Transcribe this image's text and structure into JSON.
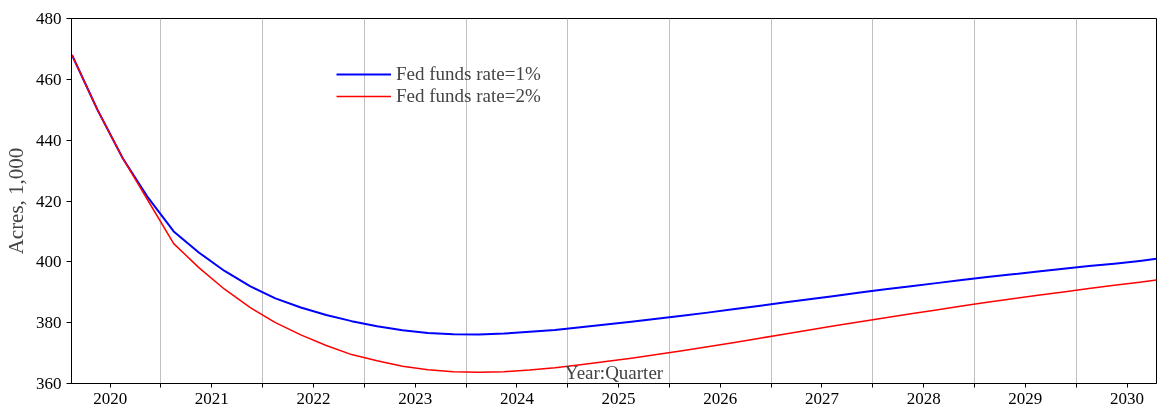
{
  "chart_data": {
    "type": "line",
    "xlabel": "Year:Quarter",
    "ylabel": "Acres, 1,000",
    "x": [
      2019.625,
      2019.875,
      2020.125,
      2020.375,
      2020.625,
      2020.875,
      2021.125,
      2021.375,
      2021.625,
      2021.875,
      2022.125,
      2022.375,
      2022.625,
      2022.875,
      2023.125,
      2023.375,
      2023.625,
      2023.875,
      2024.125,
      2024.375,
      2024.625,
      2024.875,
      2025.125,
      2025.375,
      2025.625,
      2025.875,
      2026.125,
      2026.375,
      2026.625,
      2026.875,
      2027.125,
      2027.375,
      2027.625,
      2027.875,
      2028.125,
      2028.375,
      2028.625,
      2028.875,
      2029.125,
      2029.375,
      2029.625,
      2029.875,
      2030.125,
      2030.29
    ],
    "series": [
      {
        "name": "Fed funds rate=1%",
        "color": "#0000ff",
        "values": [
          468,
          450,
          434,
          421,
          410,
          403,
          397,
          392,
          388,
          385,
          382.5,
          380.5,
          378.8,
          377.5,
          376.6,
          376.2,
          376.1,
          376.4,
          377,
          377.6,
          378.5,
          379.4,
          380.3,
          381.3,
          382.3,
          383.3,
          384.4,
          385.5,
          386.6,
          387.7,
          388.8,
          389.9,
          391,
          392,
          393,
          394,
          395,
          395.9,
          396.8,
          397.7,
          398.6,
          399.4,
          400.3,
          401
        ]
      },
      {
        "name": "Fed funds rate=2%",
        "color": "#ff0000",
        "values": [
          468,
          450,
          434,
          420,
          406,
          398,
          391,
          385,
          380,
          376,
          372.5,
          369.5,
          367.5,
          365.7,
          364.5,
          363.9,
          363.7,
          363.9,
          364.4,
          365.2,
          366.2,
          367.2,
          368.3,
          369.5,
          370.8,
          372.1,
          373.4,
          374.8,
          376.2,
          377.6,
          379,
          380.3,
          381.6,
          382.9,
          384.2,
          385.5,
          386.7,
          387.9,
          389,
          390.1,
          391.2,
          392.3,
          393.3,
          394
        ]
      }
    ],
    "xlim": [
      2019.62,
      2030.29
    ],
    "ylim": [
      360,
      480
    ],
    "yticks": [
      360,
      380,
      400,
      420,
      440,
      460,
      480
    ],
    "xticks": [
      2020,
      {
        "value": 2020.5,
        "label": null
      },
      2021,
      {
        "value": 2021.5,
        "label": null
      },
      2022,
      {
        "value": 2022.5,
        "label": null
      },
      2023,
      {
        "value": 2023.5,
        "label": null
      },
      2024,
      {
        "value": 2024.5,
        "label": null
      },
      2025,
      {
        "value": 2025.5,
        "label": null
      },
      2026,
      {
        "value": 2026.5,
        "label": null
      },
      2027,
      {
        "value": 2027.5,
        "label": null
      },
      2028,
      {
        "value": 2028.5,
        "label": null
      },
      2029,
      {
        "value": 2029.5,
        "label": null
      },
      2030
    ],
    "grid": "x",
    "legend": "top",
    "marker": "none",
    "line_style": "solid"
  }
}
